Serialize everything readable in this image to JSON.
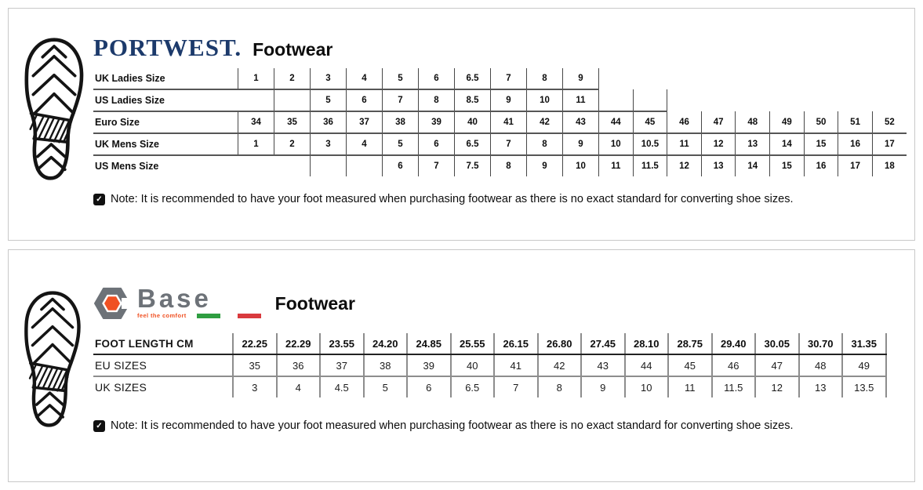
{
  "note_text": "Note: It is recommended to have your foot measured when purchasing footwear as there is no exact standard for converting shoe sizes.",
  "icons": {
    "note_check": "✓"
  },
  "portwest": {
    "brand": "PORTWEST.",
    "title": "Footwear",
    "brand_color": "#1c3a6b",
    "table": {
      "rows": [
        {
          "label": "UK Ladies Size",
          "cells": [
            "1",
            "2",
            "3",
            "4",
            "5",
            "6",
            "6.5",
            "7",
            "8",
            "9",
            null,
            null,
            null,
            null,
            null,
            null,
            null,
            null,
            null
          ]
        },
        {
          "label": "US Ladies Size",
          "cells": [
            "",
            "",
            "5",
            "6",
            "7",
            "8",
            "8.5",
            "9",
            "10",
            "11",
            "",
            "",
            null,
            null,
            null,
            null,
            null,
            null,
            null
          ]
        },
        {
          "label": "Euro Size",
          "cells": [
            "34",
            "35",
            "36",
            "37",
            "38",
            "39",
            "40",
            "41",
            "42",
            "43",
            "44",
            "45",
            "46",
            "47",
            "48",
            "49",
            "50",
            "51",
            "52"
          ]
        },
        {
          "label": "UK Mens Size",
          "cells": [
            "1",
            "2",
            "3",
            "4",
            "5",
            "6",
            "6.5",
            "7",
            "8",
            "9",
            "10",
            "10.5",
            "11",
            "12",
            "13",
            "14",
            "15",
            "16",
            "17"
          ]
        },
        {
          "label": "US Mens Size",
          "cells": [
            null,
            null,
            "",
            "",
            "6",
            "7",
            "7.5",
            "8",
            "9",
            "10",
            "11",
            "11.5",
            "12",
            "13",
            "14",
            "15",
            "16",
            "17",
            "18"
          ]
        }
      ]
    }
  },
  "base": {
    "brand": "Base",
    "tagline": "feel the comfort",
    "title": "Footwear",
    "brand_gray": "#6d7278",
    "brand_orange": "#f05123",
    "flag_green": "#2f9e41",
    "flag_red": "#d93a3e",
    "table": {
      "rows": [
        {
          "label": "FOOT LENGTH CM",
          "cells": [
            "22.25",
            "22.29",
            "23.55",
            "24.20",
            "24.85",
            "25.55",
            "26.15",
            "26.80",
            "27.45",
            "28.10",
            "28.75",
            "29.40",
            "30.05",
            "30.70",
            "31.35"
          ]
        },
        {
          "label": "EU SIZES",
          "cells": [
            "35",
            "36",
            "37",
            "38",
            "39",
            "40",
            "41",
            "42",
            "43",
            "44",
            "45",
            "46",
            "47",
            "48",
            "49"
          ]
        },
        {
          "label": "UK SIZES",
          "cells": [
            "3",
            "4",
            "4.5",
            "5",
            "6",
            "6.5",
            "7",
            "8",
            "9",
            "10",
            "11",
            "11.5",
            "12",
            "13",
            "13.5"
          ]
        }
      ]
    }
  }
}
